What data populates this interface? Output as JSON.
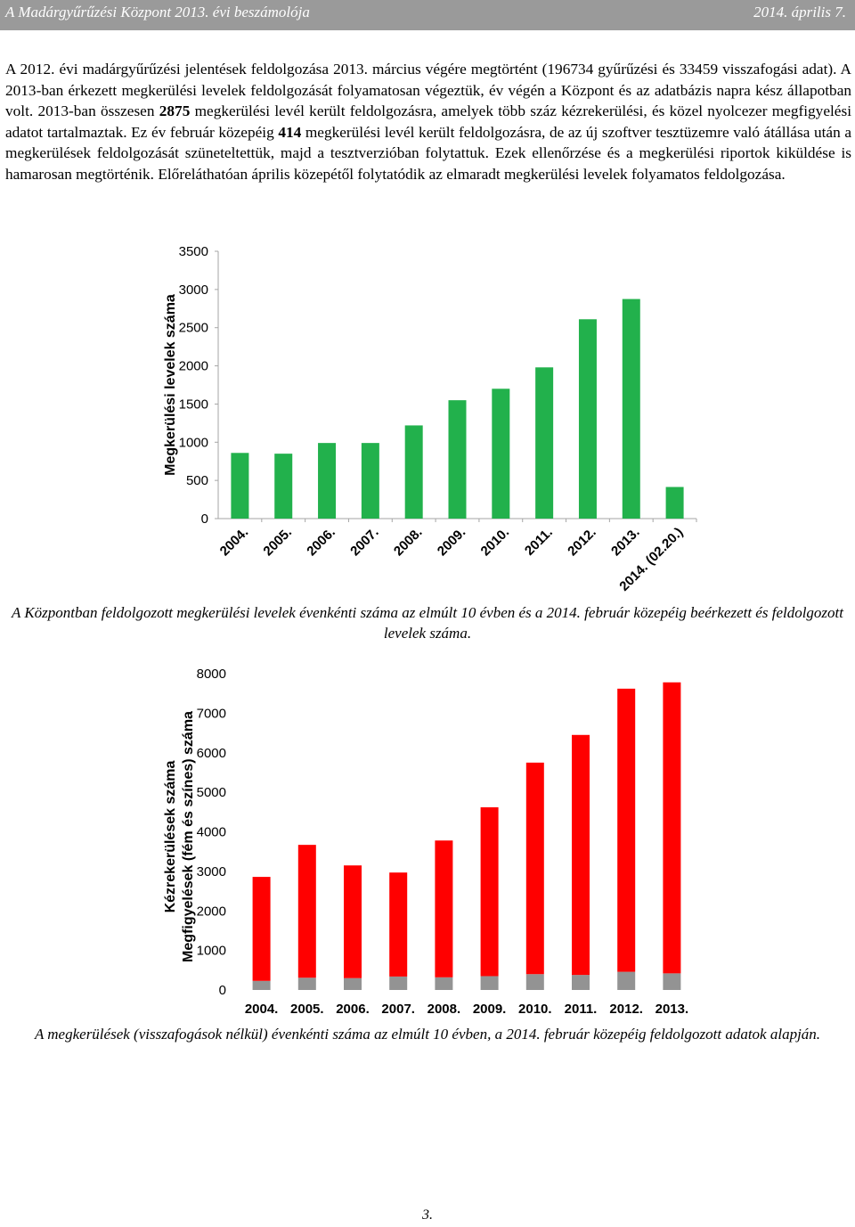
{
  "header": {
    "left": "A Madárgyűrűzési Központ 2013. évi beszámolója",
    "right": "2014. április 7."
  },
  "paragraph": {
    "p1": "A 2012. évi madárgyűrűzési jelentések feldolgozása 2013. március végére megtörtént (196734 gyűrűzési és 33459 visszafogási adat). A 2013-ban érkezett megkerülési levelek feldolgozását folyamatosan végeztük, év végén a Központ és az adatbázis napra kész állapotban volt. 2013-ban összesen ",
    "b1": "2875",
    "p2": " megkerülési levél került feldolgozásra, amelyek több száz kézrekerülési, és közel nyolcezer megfigyelési adatot tartalmaztak. Ez év február közepéig ",
    "b2": "414",
    "p3": " megkerülési levél került feldolgozásra, de az új szoftver tesztüzemre való átállása után a megkerülések feldolgozását szüneteltettük, majd a tesztverzióban folytattuk. Ezek ellenőrzése és a megkerülési riportok kiküldése is hamarosan megtörténik. Előreláthatóan április közepétől folytatódik az elmaradt megkerülési levelek folyamatos feldolgozása."
  },
  "chart_data": [
    {
      "type": "bar",
      "ylabel": "Megkerülési levelek száma",
      "ylim": [
        0,
        3500
      ],
      "yticks": [
        0,
        500,
        1000,
        1500,
        2000,
        2500,
        3000,
        3500
      ],
      "categories": [
        "2004.",
        "2005.",
        "2006.",
        "2007.",
        "2008.",
        "2009.",
        "2010.",
        "2011.",
        "2012.",
        "2013.",
        "2014. (02.20.)"
      ],
      "values": [
        860,
        850,
        990,
        990,
        1220,
        1550,
        1700,
        1980,
        2610,
        2875,
        414
      ],
      "color": "#22b14c",
      "grid": false,
      "caption": "A Központban feldolgozott megkerülési levelek évenkénti száma az elmúlt 10 évben és a 2014. február közepéig beérkezett és feldolgozott levelek száma."
    },
    {
      "type": "bar",
      "stacked": true,
      "ylabel_line1": "Kézrekerülések száma",
      "ylabel_line2": "Megfigyelések (fém és színes) száma",
      "ylim": [
        0,
        8000
      ],
      "yticks": [
        0,
        1000,
        2000,
        3000,
        4000,
        5000,
        6000,
        7000,
        8000
      ],
      "categories": [
        "2004.",
        "2005.",
        "2006.",
        "2007.",
        "2008.",
        "2009.",
        "2010.",
        "2011.",
        "2012.",
        "2013."
      ],
      "series": [
        {
          "values": [
            230,
            310,
            300,
            340,
            320,
            350,
            400,
            380,
            460,
            420
          ],
          "color": "#939393"
        },
        {
          "values": [
            2630,
            3360,
            2850,
            2630,
            3460,
            4270,
            5350,
            6070,
            7160,
            7360
          ],
          "color": "#ff0000"
        }
      ],
      "grid": false,
      "caption": "A megkerülések (visszafogások nélkül) évenkénti száma az elmúlt 10 évben, a 2014. február közepéig feldolgozott adatok alapján."
    }
  ],
  "page_number": "3."
}
